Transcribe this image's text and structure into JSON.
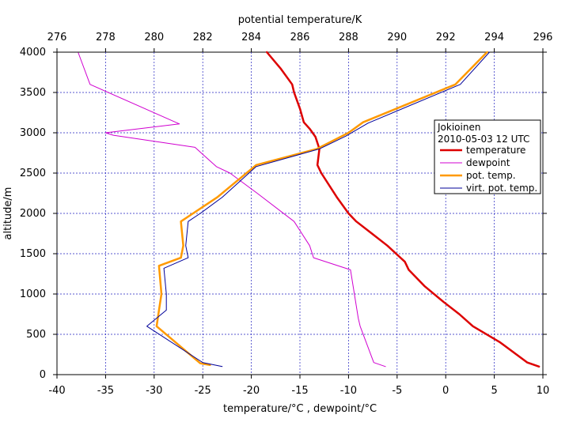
{
  "chart_data": {
    "type": "line",
    "title": "",
    "xlabel": "temperature/°C , dewpoint/°C",
    "x2label": "potential temperature/K",
    "ylabel": "altitude/m",
    "xlim": [
      -40,
      10
    ],
    "x2lim": [
      276,
      296
    ],
    "ylim": [
      0,
      4000
    ],
    "xticks": [
      "-40",
      "-35",
      "-30",
      "-25",
      "-20",
      "-15",
      "-10",
      "-5",
      "0",
      "5",
      "10"
    ],
    "x2ticks": [
      "276",
      "278",
      "280",
      "282",
      "284",
      "286",
      "288",
      "290",
      "292",
      "294",
      "296"
    ],
    "yticks": [
      "0",
      "500",
      "1000",
      "1500",
      "2000",
      "2500",
      "3000",
      "3500",
      "4000"
    ],
    "grid": true,
    "legend": {
      "title_lines": [
        "Jokioinen",
        "2010-05-03 12 UTC"
      ],
      "placement": "right"
    },
    "series": [
      {
        "name": "temperature",
        "axis": "bottom",
        "color": "#dd0000",
        "width": 2.5,
        "points": [
          [
            9.6,
            100
          ],
          [
            8.4,
            150
          ],
          [
            5.6,
            400
          ],
          [
            2.8,
            600
          ],
          [
            1.4,
            750
          ],
          [
            -0.2,
            900
          ],
          [
            -2.2,
            1100
          ],
          [
            -3.8,
            1300
          ],
          [
            -4.2,
            1400
          ],
          [
            -6.0,
            1600
          ],
          [
            -7.6,
            1750
          ],
          [
            -9.2,
            1900
          ],
          [
            -10.0,
            2000
          ],
          [
            -11.2,
            2200
          ],
          [
            -12.8,
            2500
          ],
          [
            -13.2,
            2600
          ],
          [
            -13.0,
            2800
          ],
          [
            -13.4,
            2950
          ],
          [
            -14.0,
            3050
          ],
          [
            -14.6,
            3130
          ],
          [
            -15.0,
            3300
          ],
          [
            -15.6,
            3500
          ],
          [
            -15.8,
            3600
          ],
          [
            -17.0,
            3800
          ],
          [
            -18.4,
            4000
          ]
        ]
      },
      {
        "name": "dewpoint",
        "axis": "bottom",
        "color": "#d000d0",
        "width": 1,
        "points": [
          [
            -6.2,
            100
          ],
          [
            -7.4,
            150
          ],
          [
            -8.8,
            600
          ],
          [
            -9.0,
            700
          ],
          [
            -9.4,
            1000
          ],
          [
            -9.8,
            1300
          ],
          [
            -13.6,
            1450
          ],
          [
            -14.0,
            1600
          ],
          [
            -15.6,
            1900
          ],
          [
            -19.4,
            2250
          ],
          [
            -22.2,
            2500
          ],
          [
            -23.6,
            2580
          ],
          [
            -25.8,
            2820
          ],
          [
            -34.2,
            2970
          ],
          [
            -35.0,
            3000
          ],
          [
            -27.4,
            3110
          ],
          [
            -36.6,
            3600
          ],
          [
            -37.8,
            3990
          ]
        ]
      },
      {
        "name": "pot. temp.",
        "axis": "top",
        "color": "#ff9900",
        "width": 2.5,
        "points": [
          [
            282.3,
            120
          ],
          [
            281.9,
            140
          ],
          [
            280.1,
            600
          ],
          [
            280.2,
            800
          ],
          [
            280.3,
            1000
          ],
          [
            280.2,
            1350
          ],
          [
            281.1,
            1450
          ],
          [
            281.2,
            1600
          ],
          [
            281.1,
            1900
          ],
          [
            281.6,
            2000
          ],
          [
            282.6,
            2200
          ],
          [
            284.2,
            2600
          ],
          [
            286.7,
            2800
          ],
          [
            288.0,
            3000
          ],
          [
            288.6,
            3130
          ],
          [
            292.4,
            3600
          ],
          [
            293.7,
            4000
          ]
        ]
      },
      {
        "name": "virt. pot. temp.",
        "axis": "top",
        "color": "#000099",
        "width": 1,
        "points": [
          [
            282.8,
            100
          ],
          [
            282.0,
            150
          ],
          [
            279.7,
            600
          ],
          [
            280.5,
            800
          ],
          [
            280.5,
            1000
          ],
          [
            280.4,
            1320
          ],
          [
            281.4,
            1450
          ],
          [
            281.3,
            1600
          ],
          [
            281.4,
            1900
          ],
          [
            281.9,
            2000
          ],
          [
            282.8,
            2200
          ],
          [
            284.2,
            2580
          ],
          [
            286.8,
            2800
          ],
          [
            287.9,
            2960
          ],
          [
            288.8,
            3120
          ],
          [
            292.6,
            3600
          ],
          [
            293.8,
            4000
          ]
        ]
      }
    ]
  }
}
